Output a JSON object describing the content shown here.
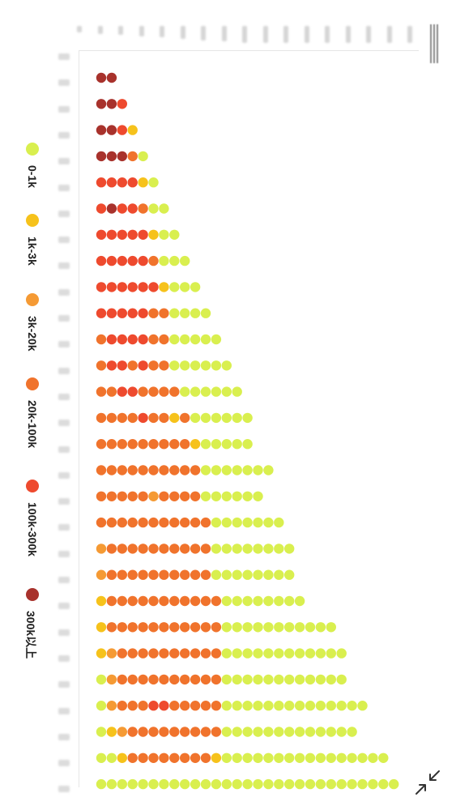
{
  "chart_data": {
    "type": "scatter",
    "subtype": "dot-matrix",
    "legend": {
      "placement": "left",
      "entries": [
        {
          "label": "0-1k",
          "color": "#d9ef4f"
        },
        {
          "label": "1k-3k",
          "color": "#f6c21b"
        },
        {
          "label": "3k-20k",
          "color": "#f59a34"
        },
        {
          "label": "20k-100k",
          "color": "#f0732c"
        },
        {
          "label": "100k-300k",
          "color": "#ee4a2e"
        },
        {
          "label": "300k以上",
          "color": "#a8322c"
        }
      ]
    },
    "rows": [
      [
        5,
        5
      ],
      [
        5,
        5,
        4
      ],
      [
        5,
        5,
        4,
        1
      ],
      [
        5,
        5,
        5,
        3,
        0
      ],
      [
        4,
        4,
        4,
        4,
        1,
        0
      ],
      [
        4,
        5,
        4,
        4,
        3,
        0,
        0
      ],
      [
        4,
        4,
        4,
        4,
        4,
        1,
        0,
        0
      ],
      [
        4,
        4,
        4,
        4,
        4,
        3,
        0,
        0,
        0
      ],
      [
        4,
        4,
        4,
        4,
        4,
        4,
        1,
        0,
        0,
        0
      ],
      [
        4,
        4,
        4,
        4,
        4,
        3,
        3,
        0,
        0,
        0,
        0
      ],
      [
        3,
        4,
        4,
        4,
        4,
        3,
        3,
        0,
        0,
        0,
        0,
        0
      ],
      [
        3,
        4,
        4,
        3,
        4,
        3,
        3,
        0,
        0,
        0,
        0,
        0,
        0
      ],
      [
        3,
        3,
        4,
        4,
        3,
        3,
        3,
        3,
        0,
        0,
        0,
        0,
        0,
        0
      ],
      [
        3,
        3,
        3,
        3,
        4,
        3,
        3,
        1,
        3,
        0,
        0,
        0,
        0,
        0,
        0
      ],
      [
        3,
        3,
        3,
        3,
        3,
        3,
        3,
        3,
        3,
        1,
        0,
        0,
        0,
        0,
        0
      ],
      [
        3,
        3,
        3,
        3,
        3,
        3,
        3,
        3,
        3,
        3,
        0,
        0,
        0,
        0,
        0,
        0,
        0
      ],
      [
        3,
        3,
        3,
        3,
        3,
        2,
        3,
        3,
        3,
        3,
        0,
        0,
        0,
        0,
        0,
        0
      ],
      [
        3,
        3,
        3,
        3,
        3,
        3,
        3,
        3,
        3,
        3,
        3,
        0,
        0,
        0,
        0,
        0,
        0,
        0
      ],
      [
        2,
        3,
        3,
        3,
        3,
        3,
        3,
        3,
        3,
        3,
        3,
        0,
        0,
        0,
        0,
        0,
        0,
        0,
        0
      ],
      [
        2,
        3,
        3,
        3,
        3,
        3,
        3,
        3,
        3,
        3,
        3,
        0,
        0,
        0,
        0,
        0,
        0,
        0,
        0
      ],
      [
        1,
        3,
        3,
        3,
        3,
        3,
        3,
        3,
        3,
        3,
        3,
        3,
        0,
        0,
        0,
        0,
        0,
        0,
        0,
        0
      ],
      [
        1,
        3,
        3,
        3,
        3,
        3,
        3,
        3,
        3,
        3,
        3,
        3,
        0,
        0,
        0,
        0,
        0,
        0,
        0,
        0,
        0,
        0,
        0
      ],
      [
        1,
        2,
        3,
        3,
        3,
        3,
        3,
        3,
        3,
        3,
        3,
        3,
        0,
        0,
        0,
        0,
        0,
        0,
        0,
        0,
        0,
        0,
        0,
        0
      ],
      [
        0,
        2,
        3,
        3,
        3,
        3,
        3,
        3,
        3,
        3,
        3,
        3,
        0,
        0,
        0,
        0,
        0,
        0,
        0,
        0,
        0,
        0,
        0,
        0
      ],
      [
        0,
        2,
        3,
        3,
        3,
        4,
        4,
        3,
        3,
        3,
        3,
        3,
        0,
        0,
        0,
        0,
        0,
        0,
        0,
        0,
        0,
        0,
        0,
        0,
        0,
        0
      ],
      [
        0,
        1,
        2,
        3,
        3,
        3,
        3,
        3,
        3,
        3,
        3,
        3,
        0,
        0,
        0,
        0,
        0,
        0,
        0,
        0,
        0,
        0,
        0,
        0,
        0
      ],
      [
        0,
        0,
        1,
        3,
        3,
        3,
        3,
        3,
        3,
        3,
        3,
        1,
        0,
        0,
        0,
        0,
        0,
        0,
        0,
        0,
        0,
        0,
        0,
        0,
        0,
        0,
        0,
        0
      ],
      [
        0,
        0,
        0,
        0,
        0,
        0,
        0,
        0,
        0,
        0,
        0,
        0,
        0,
        0,
        0,
        0,
        0,
        0,
        0,
        0,
        0,
        0,
        0,
        0,
        0,
        0,
        0,
        0,
        0
      ]
    ],
    "row_gaps": {
      "24": 25
    },
    "grid": false
  },
  "toolbar": {
    "menu_icon": "menu-icon",
    "zoom_icon": "collapse-icon"
  }
}
